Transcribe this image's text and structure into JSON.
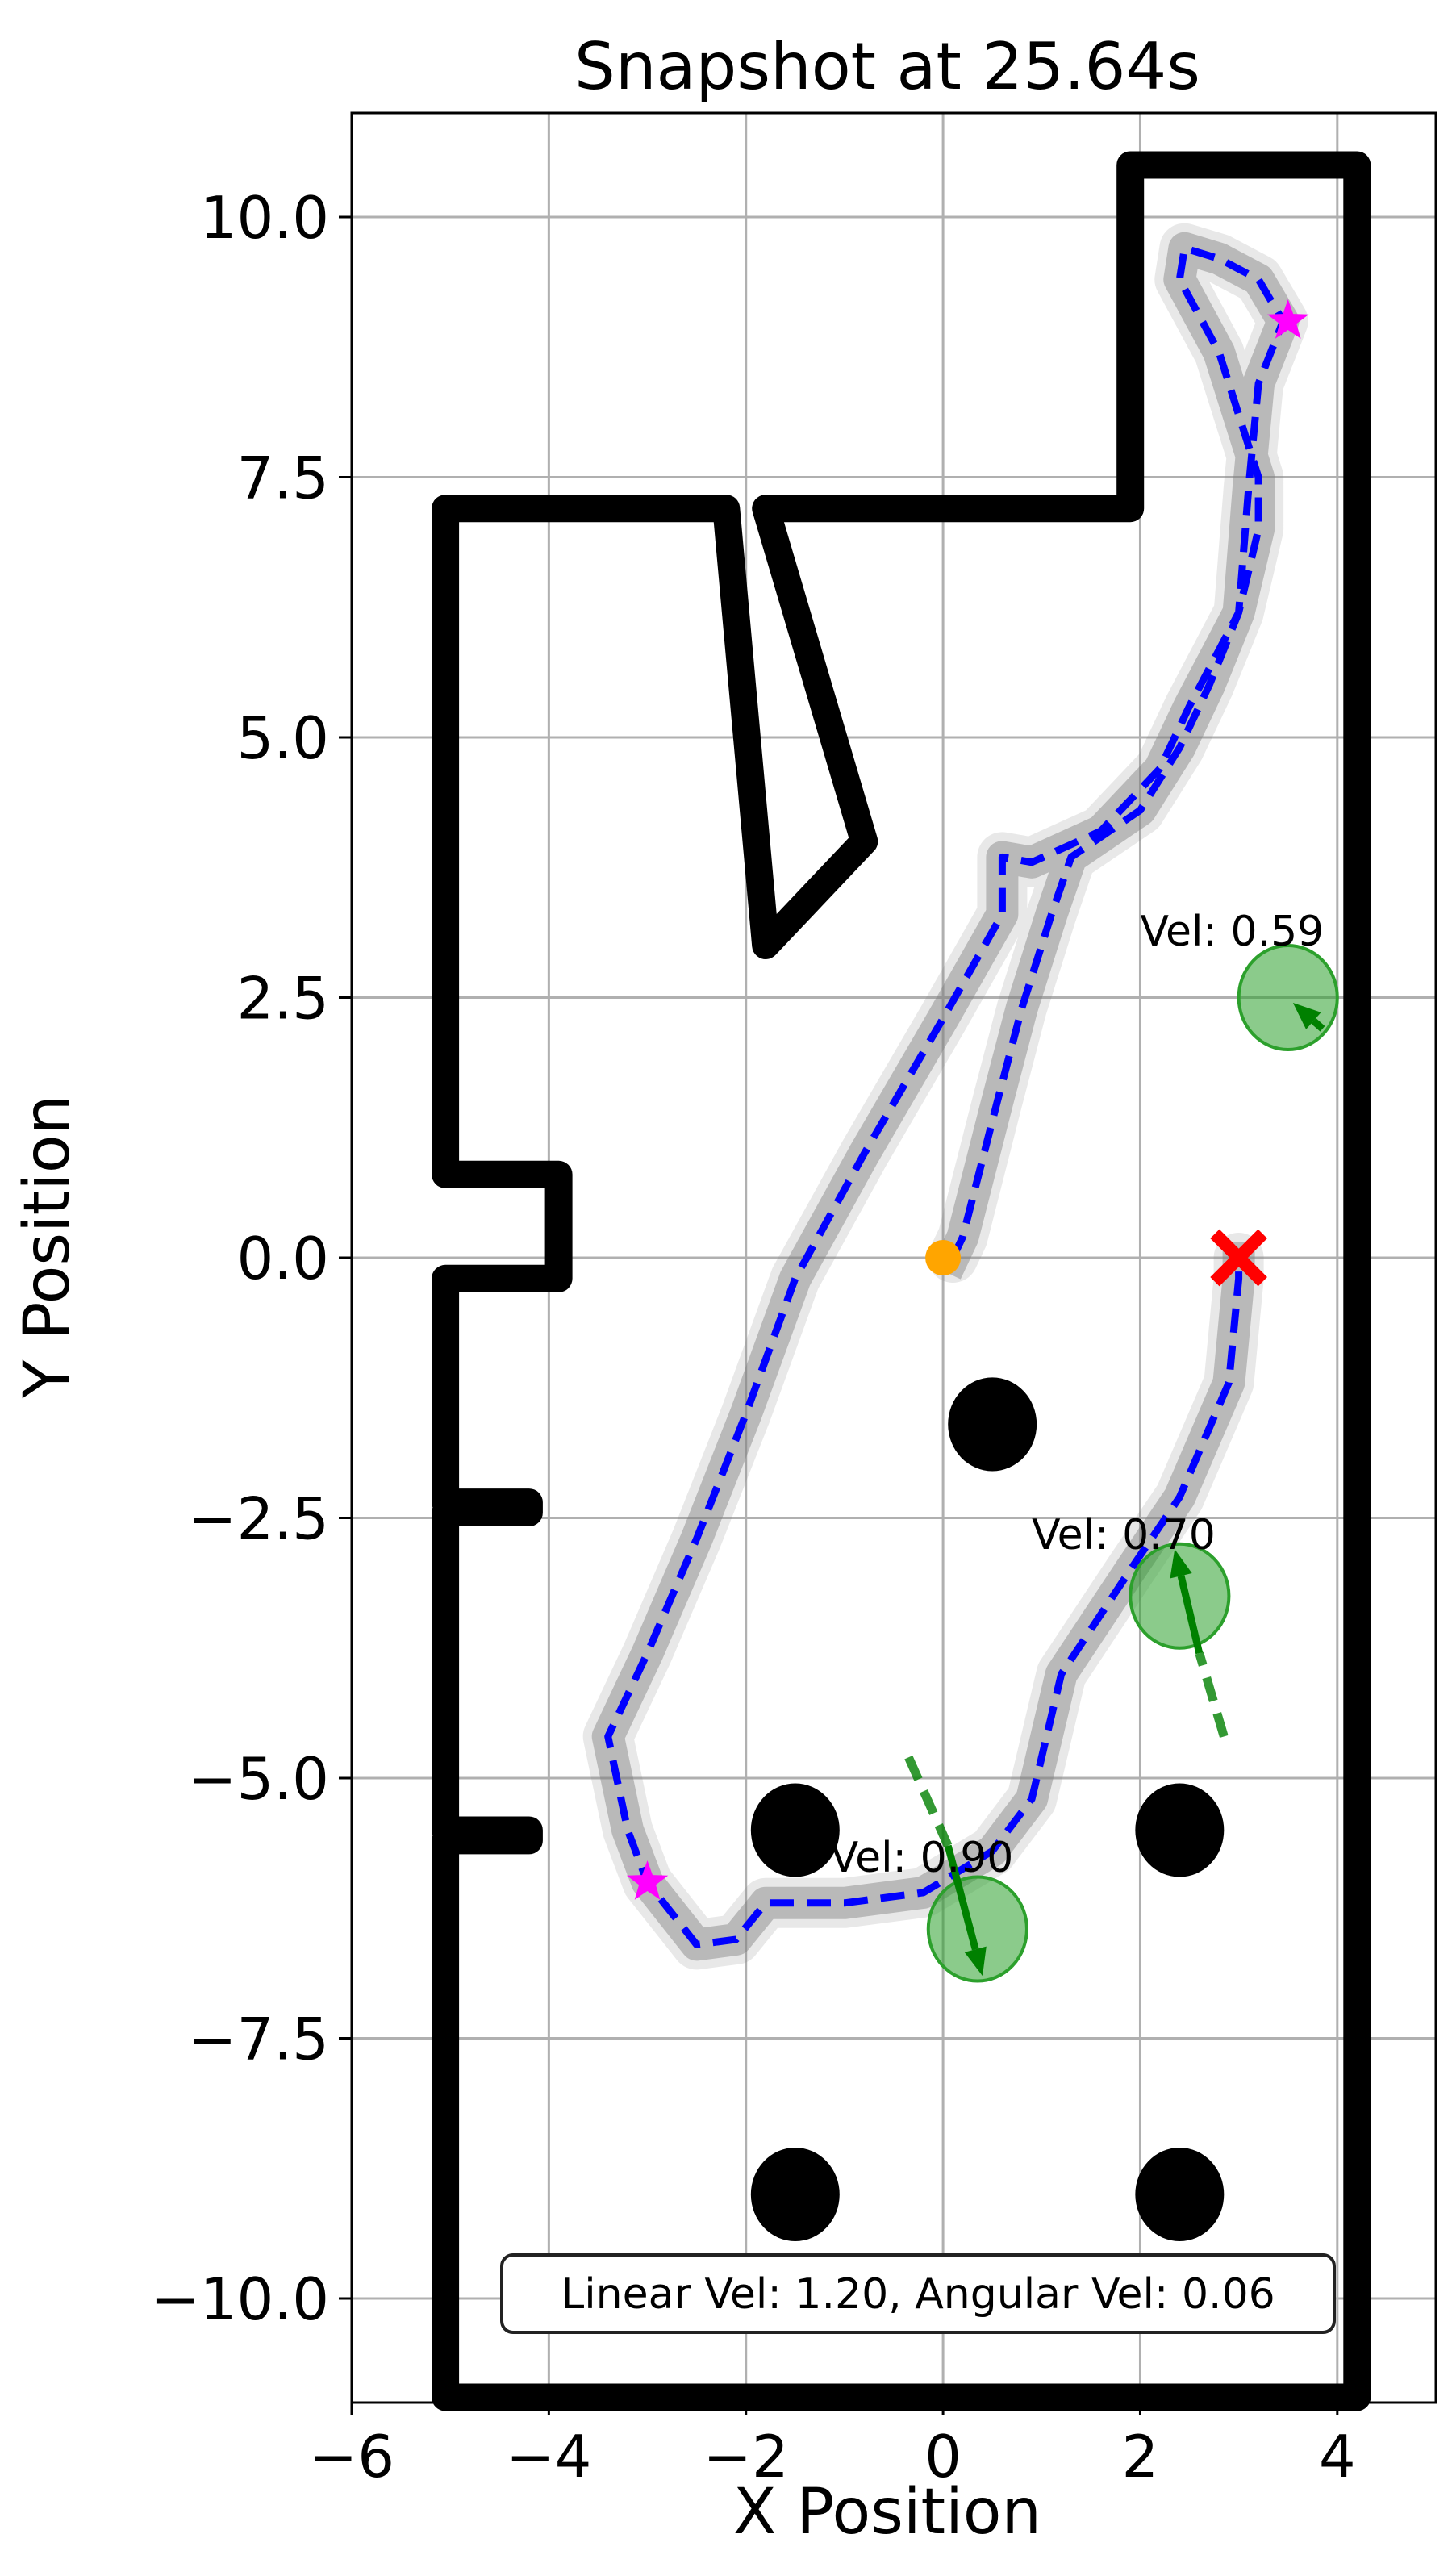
{
  "chart_data": {
    "type": "trajectory-map",
    "title": "Snapshot at 25.64s",
    "xlabel": "X Position",
    "ylabel": "Y Position",
    "xlim": [
      -6,
      5
    ],
    "ylim": [
      -11,
      11
    ],
    "grid": true,
    "x_ticks": [
      -6,
      -4,
      -2,
      0,
      2,
      4
    ],
    "x_tick_labels": [
      "−6",
      "−4",
      "−2",
      "0",
      "2",
      "4"
    ],
    "y_ticks": [
      10.0,
      7.5,
      5.0,
      2.5,
      0.0,
      -2.5,
      -5.0,
      -7.5,
      -10.0
    ],
    "y_tick_labels": [
      "10.0",
      "7.5",
      "5.0",
      "2.5",
      "0.0",
      "−2.5",
      "−5.0",
      "−7.5",
      "−10.0"
    ],
    "walls": [
      {
        "name": "outer-wall",
        "points": [
          [
            -5.05,
            -10.95
          ],
          [
            -5.05,
            -5.6
          ],
          [
            -4.2,
            -5.6
          ],
          [
            -4.2,
            -5.5
          ],
          [
            -5.05,
            -5.5
          ],
          [
            -5.05,
            -2.45
          ],
          [
            -4.2,
            -2.45
          ],
          [
            -4.2,
            -2.35
          ],
          [
            -5.05,
            -2.35
          ],
          [
            -5.05,
            -0.2
          ],
          [
            -3.9,
            -0.2
          ],
          [
            -3.9,
            0.8
          ],
          [
            -5.05,
            0.8
          ],
          [
            -5.05,
            7.2
          ],
          [
            -2.2,
            7.2
          ],
          [
            -1.8,
            3.0
          ],
          [
            -0.8,
            4.0
          ],
          [
            -1.8,
            7.2
          ],
          [
            1.9,
            7.2
          ],
          [
            1.9,
            10.5
          ],
          [
            4.2,
            10.5
          ],
          [
            4.2,
            -10.95
          ],
          [
            -5.05,
            -10.95
          ]
        ]
      }
    ],
    "static_obstacles": [
      {
        "x": 0.5,
        "y": -1.6,
        "r": 0.45
      },
      {
        "x": -1.5,
        "y": -5.5,
        "r": 0.45
      },
      {
        "x": 2.4,
        "y": -5.5,
        "r": 0.45
      },
      {
        "x": -1.5,
        "y": -9.0,
        "r": 0.45
      },
      {
        "x": 2.4,
        "y": -9.0,
        "r": 0.45
      }
    ],
    "robot_path": [
      [
        0.1,
        0.0
      ],
      [
        0.2,
        0.2
      ],
      [
        0.55,
        1.5
      ],
      [
        0.8,
        2.4
      ],
      [
        1.1,
        3.3
      ],
      [
        1.3,
        3.85
      ],
      [
        2.0,
        4.3
      ],
      [
        2.4,
        4.9
      ],
      [
        2.7,
        5.5
      ],
      [
        3.0,
        6.2
      ],
      [
        3.2,
        7.0
      ],
      [
        3.2,
        7.5
      ],
      [
        3.0,
        8.1
      ],
      [
        2.8,
        8.7
      ],
      [
        2.4,
        9.4
      ],
      [
        2.45,
        9.7
      ],
      [
        2.8,
        9.6
      ],
      [
        3.2,
        9.4
      ],
      [
        3.45,
        9.0
      ],
      [
        3.2,
        8.4
      ],
      [
        3.1,
        7.4
      ],
      [
        3.0,
        6.2
      ],
      [
        2.5,
        5.3
      ],
      [
        2.2,
        4.7
      ],
      [
        1.6,
        4.1
      ],
      [
        0.9,
        3.8
      ],
      [
        0.6,
        3.85
      ],
      [
        0.6,
        3.3
      ],
      [
        0.0,
        2.3
      ],
      [
        -0.8,
        1.0
      ],
      [
        -1.5,
        -0.2
      ],
      [
        -2.0,
        -1.5
      ],
      [
        -2.5,
        -2.7
      ],
      [
        -3.0,
        -3.8
      ],
      [
        -3.4,
        -4.6
      ],
      [
        -3.2,
        -5.5
      ],
      [
        -3.0,
        -6.0
      ],
      [
        -2.5,
        -6.6
      ],
      [
        -2.1,
        -6.55
      ],
      [
        -1.8,
        -6.2
      ],
      [
        -1.0,
        -6.2
      ],
      [
        -0.2,
        -6.1
      ],
      [
        0.5,
        -5.7
      ],
      [
        0.9,
        -5.2
      ],
      [
        1.2,
        -4.0
      ],
      [
        1.9,
        -3.0
      ],
      [
        2.4,
        -2.3
      ],
      [
        2.9,
        -1.2
      ],
      [
        3.0,
        -0.2
      ],
      [
        3.0,
        0.0
      ]
    ],
    "robot_start": {
      "x": 0.0,
      "y": 0.0,
      "color": "#ffa500"
    },
    "goal": {
      "x": 3.0,
      "y": 0.0,
      "color": "#ff0000"
    },
    "waypoints": [
      {
        "x": 3.5,
        "y": 9.0
      },
      {
        "x": -3.0,
        "y": -6.0
      }
    ],
    "waypoint_color": "#ff00ff",
    "path_color": "#0000ff",
    "trail_color": "#808080",
    "pedestrians": [
      {
        "x": 3.5,
        "y": 2.5,
        "r": 0.5,
        "label": "Vel: 0.59",
        "label_x": 2.0,
        "label_y": 3.0,
        "arrow_from": [
          3.85,
          2.2
        ],
        "arrow_to": [
          3.55,
          2.45
        ],
        "dash_from": [
          3.85,
          2.2
        ],
        "dash_to": [
          3.85,
          2.2
        ]
      },
      {
        "x": 2.4,
        "y": -3.25,
        "r": 0.5,
        "label": "Vel: 0.70",
        "label_x": 0.9,
        "label_y": -2.8,
        "arrow_from": [
          2.6,
          -3.8
        ],
        "arrow_to": [
          2.35,
          -2.8
        ],
        "dash_from": [
          2.85,
          -4.6
        ],
        "dash_to": [
          2.6,
          -3.8
        ]
      },
      {
        "x": 0.35,
        "y": -6.45,
        "r": 0.5,
        "label": "Vel: 0.90",
        "label_x": -1.15,
        "label_y": -5.9,
        "arrow_from": [
          0.05,
          -5.65
        ],
        "arrow_to": [
          0.4,
          -6.9
        ],
        "dash_from": [
          -0.35,
          -4.8
        ],
        "dash_to": [
          0.05,
          -5.65
        ]
      }
    ],
    "pedestrian_color": "#2ca02c",
    "arrow_color": "#008000",
    "info_text": "Linear Vel: 1.20, Angular Vel: 0.06"
  }
}
